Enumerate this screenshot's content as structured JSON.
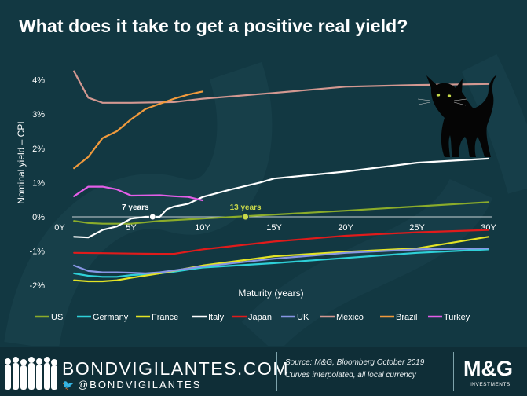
{
  "title": "What does it take to get a positive real yield?",
  "chart_data": {
    "type": "line",
    "title": "What does it take to get a positive real yield?",
    "xlabel": "Maturity (years)",
    "ylabel": "Nominal yield – CPI",
    "xlim": [
      0,
      30
    ],
    "ylim": [
      -2,
      4
    ],
    "x_ticks": [
      {
        "value": 0,
        "label": "0Y"
      },
      {
        "value": 5,
        "label": "5Y"
      },
      {
        "value": 10,
        "label": "10Y"
      },
      {
        "value": 15,
        "label": "15Y"
      },
      {
        "value": 20,
        "label": "20Y"
      },
      {
        "value": 25,
        "label": "25Y"
      },
      {
        "value": 30,
        "label": "30Y"
      }
    ],
    "y_ticks": [
      {
        "value": 4,
        "label": "4%"
      },
      {
        "value": 3,
        "label": "3%"
      },
      {
        "value": 2,
        "label": "2%"
      },
      {
        "value": 1,
        "label": "1%"
      },
      {
        "value": 0,
        "label": "0%"
      },
      {
        "value": -1,
        "label": "-1%"
      },
      {
        "value": -2,
        "label": "-2%"
      }
    ],
    "legend_position": "bottom",
    "series": [
      {
        "name": "US",
        "color": "#8bac2a",
        "points": [
          [
            1,
            -0.12
          ],
          [
            2,
            -0.18
          ],
          [
            3,
            -0.2
          ],
          [
            5,
            -0.2
          ],
          [
            7,
            -0.12
          ],
          [
            10,
            -0.05
          ],
          [
            20,
            0.18
          ],
          [
            30,
            0.43
          ]
        ]
      },
      {
        "name": "Germany",
        "color": "#2ed0d8",
        "points": [
          [
            1,
            -1.65
          ],
          [
            2,
            -1.72
          ],
          [
            3,
            -1.75
          ],
          [
            4,
            -1.75
          ],
          [
            5,
            -1.7
          ],
          [
            6,
            -1.68
          ],
          [
            7,
            -1.65
          ],
          [
            8,
            -1.6
          ],
          [
            10,
            -1.48
          ],
          [
            15,
            -1.35
          ],
          [
            20,
            -1.2
          ],
          [
            25,
            -1.05
          ],
          [
            30,
            -0.95
          ]
        ]
      },
      {
        "name": "France",
        "color": "#e3e325",
        "points": [
          [
            1,
            -1.85
          ],
          [
            2,
            -1.88
          ],
          [
            3,
            -1.88
          ],
          [
            4,
            -1.85
          ],
          [
            5,
            -1.78
          ],
          [
            7,
            -1.65
          ],
          [
            10,
            -1.42
          ],
          [
            15,
            -1.15
          ],
          [
            20,
            -1.02
          ],
          [
            25,
            -0.92
          ],
          [
            30,
            -0.58
          ]
        ]
      },
      {
        "name": "Italy",
        "color": "#ffffff",
        "points": [
          [
            1,
            -0.58
          ],
          [
            2,
            -0.6
          ],
          [
            3,
            -0.38
          ],
          [
            4,
            -0.28
          ],
          [
            5,
            -0.05
          ],
          [
            6,
            0.0
          ],
          [
            7,
            0.0
          ],
          [
            7.5,
            0.22
          ],
          [
            8,
            0.3
          ],
          [
            9,
            0.38
          ],
          [
            10,
            0.58
          ],
          [
            12,
            0.8
          ],
          [
            14,
            1.0
          ],
          [
            15,
            1.12
          ],
          [
            20,
            1.32
          ],
          [
            25,
            1.58
          ],
          [
            30,
            1.7
          ]
        ]
      },
      {
        "name": "Japan",
        "color": "#e01b1b",
        "points": [
          [
            1,
            -1.05
          ],
          [
            3,
            -1.06
          ],
          [
            5,
            -1.07
          ],
          [
            7,
            -1.08
          ],
          [
            8,
            -1.08
          ],
          [
            10,
            -0.95
          ],
          [
            15,
            -0.72
          ],
          [
            20,
            -0.55
          ],
          [
            25,
            -0.45
          ],
          [
            30,
            -0.38
          ]
        ]
      },
      {
        "name": "UK",
        "color": "#8896e4",
        "points": [
          [
            1,
            -1.42
          ],
          [
            2,
            -1.58
          ],
          [
            3,
            -1.62
          ],
          [
            4,
            -1.62
          ],
          [
            5,
            -1.63
          ],
          [
            6,
            -1.65
          ],
          [
            7,
            -1.62
          ],
          [
            10,
            -1.45
          ],
          [
            15,
            -1.22
          ],
          [
            20,
            -1.05
          ],
          [
            25,
            -0.95
          ],
          [
            30,
            -0.92
          ]
        ]
      },
      {
        "name": "Mexico",
        "color": "#d39891",
        "points": [
          [
            1,
            4.25
          ],
          [
            2,
            3.48
          ],
          [
            3,
            3.33
          ],
          [
            5,
            3.33
          ],
          [
            8,
            3.35
          ],
          [
            10,
            3.45
          ],
          [
            15,
            3.62
          ],
          [
            20,
            3.8
          ],
          [
            25,
            3.85
          ],
          [
            30,
            3.88
          ]
        ]
      },
      {
        "name": "Brazil",
        "color": "#f09a3c",
        "points": [
          [
            1,
            1.42
          ],
          [
            2,
            1.75
          ],
          [
            3,
            2.3
          ],
          [
            4,
            2.5
          ],
          [
            5,
            2.85
          ],
          [
            6,
            3.15
          ],
          [
            7,
            3.3
          ],
          [
            8,
            3.45
          ],
          [
            9,
            3.57
          ],
          [
            10,
            3.66
          ]
        ]
      },
      {
        "name": "Turkey",
        "color": "#e45ee8",
        "points": [
          [
            1,
            0.6
          ],
          [
            2,
            0.88
          ],
          [
            3,
            0.88
          ],
          [
            4,
            0.8
          ],
          [
            5,
            0.62
          ],
          [
            7,
            0.63
          ],
          [
            8,
            0.6
          ],
          [
            9,
            0.58
          ],
          [
            10,
            0.48
          ]
        ]
      }
    ],
    "annotations": [
      {
        "text": "7 years",
        "x": 6.5,
        "y": 0,
        "color": "#ffffff"
      },
      {
        "text": "13 years",
        "x": 13,
        "y": 0,
        "color": "#c9d84a"
      }
    ]
  },
  "footer": {
    "brand": "BONDVIGILANTES.COM",
    "handle": "@BONDVIGILANTES",
    "source_line1": "Source: M&G, Bloomberg October 2019",
    "source_line2": "Curves interpolated, all local currency",
    "logo": "M&G",
    "logo_sub": "INVESTMENTS"
  }
}
